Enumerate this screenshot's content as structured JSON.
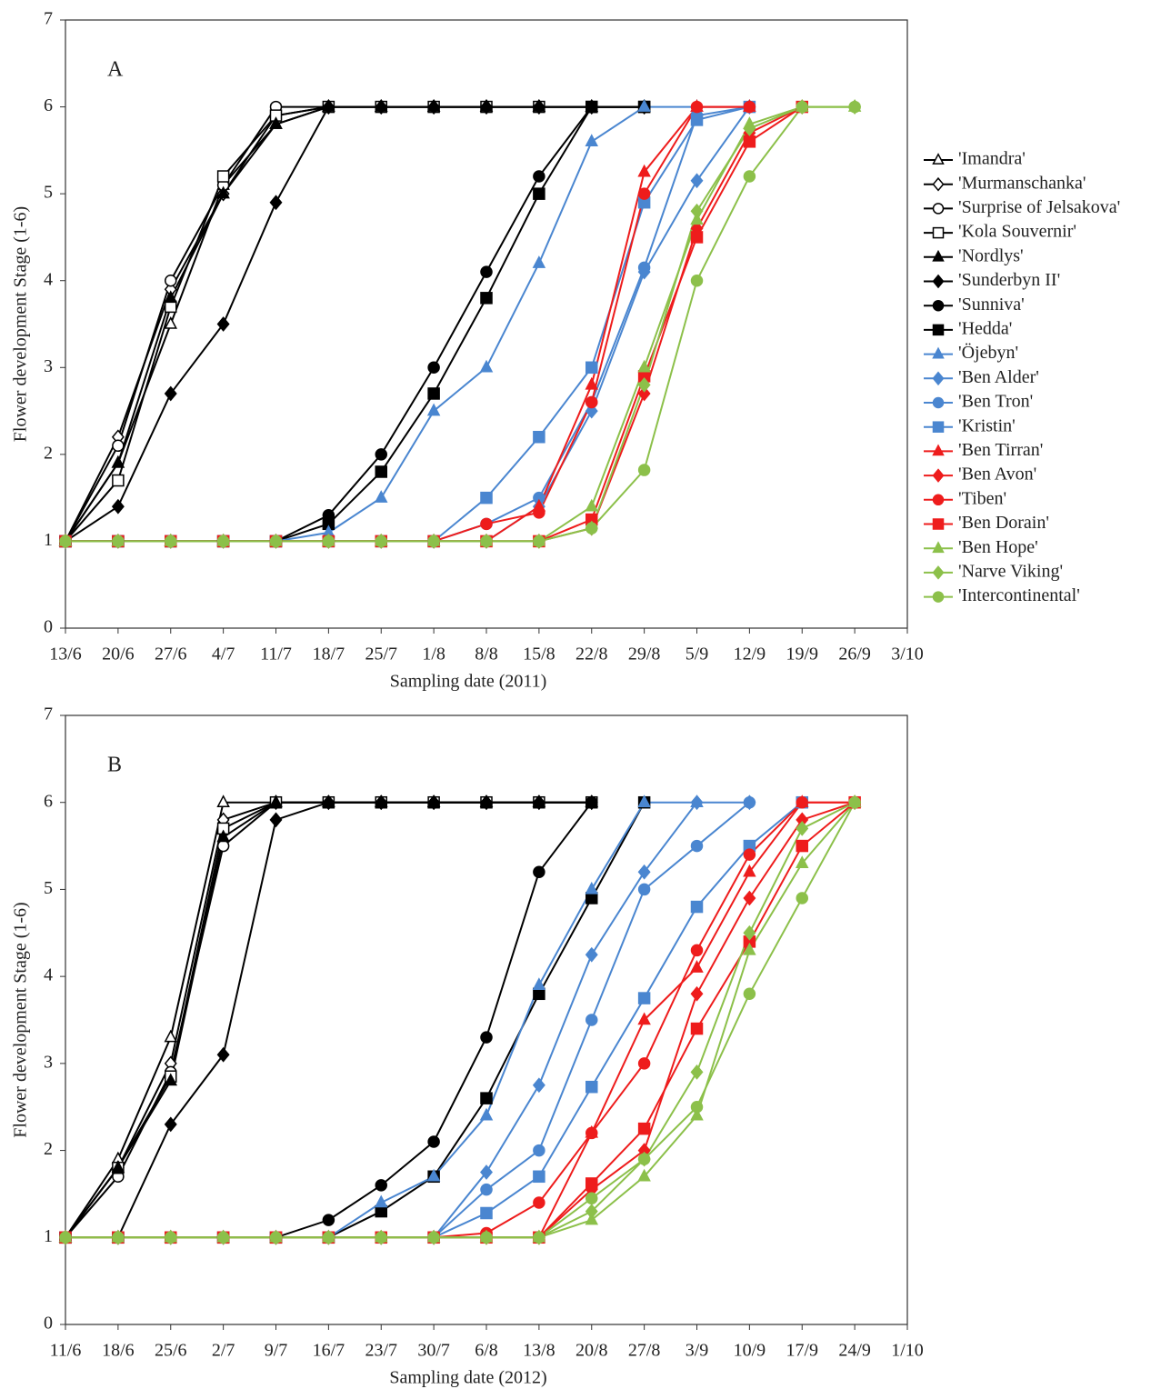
{
  "chart_data": [
    {
      "type": "line",
      "panel_label": "A",
      "x_label": "Sampling date (2011)",
      "y_label": "Flower development Stage (1-6)",
      "categories": [
        "13/6",
        "20/6",
        "27/6",
        "4/7",
        "11/7",
        "18/7",
        "25/7",
        "1/8",
        "8/8",
        "15/8",
        "22/8",
        "29/8",
        "5/9",
        "12/9",
        "19/9",
        "26/9",
        "3/10"
      ],
      "ylim": [
        0,
        7
      ],
      "yticks": [
        0,
        1,
        2,
        3,
        4,
        5,
        6,
        7
      ],
      "series": [
        {
          "name": "'Imandra'",
          "color": "#000000",
          "marker": "triangle-open",
          "values": [
            1,
            1.9,
            3.5,
            5.1,
            5.8,
            6,
            6,
            6,
            6,
            6,
            6,
            6,
            null,
            null,
            null,
            null,
            null
          ]
        },
        {
          "name": "'Murmanschanka'",
          "color": "#000000",
          "marker": "diamond-open",
          "values": [
            1,
            2.2,
            3.9,
            5.0,
            5.9,
            6,
            6,
            6,
            6,
            6,
            6,
            6,
            null,
            null,
            null,
            null,
            null
          ]
        },
        {
          "name": "'Surprise of Jelsakova'",
          "color": "#000000",
          "marker": "circle-open",
          "values": [
            1,
            2.1,
            4.0,
            5.1,
            6.0,
            6,
            6,
            6,
            6,
            6,
            6,
            6,
            null,
            null,
            null,
            null,
            null
          ]
        },
        {
          "name": "'Kola Souvernir'",
          "color": "#000000",
          "marker": "square-open",
          "values": [
            1,
            1.7,
            3.7,
            5.2,
            5.9,
            6,
            6,
            6,
            6,
            6,
            6,
            6,
            null,
            null,
            null,
            null,
            null
          ]
        },
        {
          "name": "'Nordlys'",
          "color": "#000000",
          "marker": "triangle",
          "values": [
            1,
            1.9,
            3.8,
            5.0,
            5.8,
            6,
            6,
            6,
            6,
            6,
            6,
            6,
            null,
            null,
            null,
            null,
            null
          ]
        },
        {
          "name": "'Sunderbyn II'",
          "color": "#000000",
          "marker": "diamond",
          "values": [
            1,
            1.4,
            2.7,
            3.5,
            4.9,
            6,
            6,
            6,
            6,
            6,
            6,
            6,
            null,
            null,
            null,
            null,
            null
          ]
        },
        {
          "name": "'Sunniva'",
          "color": "#000000",
          "marker": "circle",
          "values": [
            1,
            1,
            1,
            1,
            1,
            1.3,
            2.0,
            3.0,
            4.1,
            5.2,
            6,
            6,
            null,
            null,
            null,
            null,
            null
          ]
        },
        {
          "name": "'Hedda'",
          "color": "#000000",
          "marker": "square",
          "values": [
            1,
            1,
            1,
            1,
            1,
            1.2,
            1.8,
            2.7,
            3.8,
            5.0,
            6,
            6,
            null,
            null,
            null,
            null,
            null
          ]
        },
        {
          "name": "'Öjebyn'",
          "color": "#4a86d0",
          "marker": "triangle",
          "values": [
            1,
            1,
            1,
            1,
            1,
            1.1,
            1.5,
            2.5,
            3.0,
            4.2,
            5.6,
            6,
            6,
            6,
            null,
            null,
            null
          ]
        },
        {
          "name": "'Ben Alder'",
          "color": "#4a86d0",
          "marker": "diamond",
          "values": [
            1,
            1,
            1,
            1,
            1,
            1,
            1,
            1,
            1.0,
            1.4,
            2.5,
            4.1,
            5.15,
            6,
            null,
            null,
            null
          ]
        },
        {
          "name": "'Ben Tron'",
          "color": "#4a86d0",
          "marker": "circle",
          "values": [
            1,
            1,
            1,
            1,
            1,
            1,
            1,
            1,
            1.2,
            1.5,
            2.6,
            4.15,
            5.9,
            6,
            null,
            null,
            null
          ]
        },
        {
          "name": "'Kristin'",
          "color": "#4a86d0",
          "marker": "square",
          "values": [
            1,
            1,
            1,
            1,
            1,
            1,
            1,
            1,
            1.5,
            2.2,
            3.0,
            4.9,
            5.85,
            6,
            null,
            null,
            null
          ]
        },
        {
          "name": "'Ben Tirran'",
          "color": "#ee1c1c",
          "marker": "triangle",
          "values": [
            1,
            1,
            1,
            1,
            1,
            1,
            1,
            1,
            1.0,
            1.4,
            2.8,
            5.25,
            6,
            6,
            null,
            null,
            null
          ]
        },
        {
          "name": "'Ben Avon'",
          "color": "#ee1c1c",
          "marker": "diamond",
          "values": [
            1,
            1,
            1,
            1,
            1,
            1,
            1,
            1,
            1,
            1,
            1.15,
            2.7,
            4.6,
            5.7,
            6,
            null,
            null
          ]
        },
        {
          "name": "'Tiben'",
          "color": "#ee1c1c",
          "marker": "circle",
          "values": [
            1,
            1,
            1,
            1,
            1,
            1,
            1,
            1,
            1.2,
            1.33,
            2.6,
            5.0,
            6,
            6,
            null,
            null,
            null
          ]
        },
        {
          "name": "'Ben Dorain'",
          "color": "#ee1c1c",
          "marker": "square",
          "values": [
            1,
            1,
            1,
            1,
            1,
            1,
            1,
            1,
            1,
            1,
            1.25,
            2.9,
            4.5,
            5.6,
            6,
            null,
            null
          ]
        },
        {
          "name": "'Ben Hope'",
          "color": "#8cc04a",
          "marker": "triangle",
          "values": [
            1,
            1,
            1,
            1,
            1,
            1,
            1,
            1,
            1,
            1,
            1.4,
            3.0,
            4.7,
            5.8,
            6,
            6,
            null
          ]
        },
        {
          "name": "'Narve Viking'",
          "color": "#8cc04a",
          "marker": "diamond",
          "values": [
            1,
            1,
            1,
            1,
            1,
            1,
            1,
            1,
            1,
            1,
            1.15,
            2.8,
            4.8,
            5.75,
            6,
            6,
            null
          ]
        },
        {
          "name": "'Intercontinental'",
          "color": "#8cc04a",
          "marker": "circle",
          "values": [
            1,
            1,
            1,
            1,
            1,
            1,
            1,
            1,
            1,
            1,
            1.15,
            1.82,
            4.0,
            5.2,
            6,
            6,
            null
          ]
        }
      ]
    },
    {
      "type": "line",
      "panel_label": "B",
      "x_label": "Sampling date (2012)",
      "y_label": "Flower development Stage (1-6)",
      "categories": [
        "11/6",
        "18/6",
        "25/6",
        "2/7",
        "9/7",
        "16/7",
        "23/7",
        "30/7",
        "6/8",
        "13/8",
        "20/8",
        "27/8",
        "3/9",
        "10/9",
        "17/9",
        "24/9",
        "1/10"
      ],
      "ylim": [
        0,
        7
      ],
      "yticks": [
        0,
        1,
        2,
        3,
        4,
        5,
        6,
        7
      ],
      "series": [
        {
          "color": "#000000",
          "marker": "triangle-open",
          "values": [
            1,
            1.9,
            3.3,
            6.0,
            6,
            6,
            6,
            6,
            6,
            6,
            6,
            null,
            null,
            null,
            null,
            null,
            null
          ]
        },
        {
          "color": "#000000",
          "marker": "diamond-open",
          "values": [
            1,
            1.8,
            3.0,
            5.8,
            6,
            6,
            6,
            6,
            6,
            6,
            6,
            null,
            null,
            null,
            null,
            null,
            null
          ]
        },
        {
          "color": "#000000",
          "marker": "circle-open",
          "values": [
            1,
            1.7,
            2.9,
            5.5,
            6,
            6,
            6,
            6,
            6,
            6,
            6,
            null,
            null,
            null,
            null,
            null,
            null
          ]
        },
        {
          "color": "#000000",
          "marker": "square-open",
          "values": [
            1,
            1.8,
            2.85,
            5.7,
            6,
            6,
            6,
            6,
            6,
            6,
            6,
            null,
            null,
            null,
            null,
            null,
            null
          ]
        },
        {
          "color": "#000000",
          "marker": "triangle",
          "values": [
            1,
            1.8,
            2.8,
            5.6,
            6,
            6,
            6,
            6,
            6,
            6,
            6,
            null,
            null,
            null,
            null,
            null,
            null
          ]
        },
        {
          "color": "#000000",
          "marker": "diamond",
          "values": [
            1,
            1,
            2.3,
            3.1,
            5.8,
            6,
            6,
            6,
            6,
            6,
            6,
            null,
            null,
            null,
            null,
            null,
            null
          ]
        },
        {
          "color": "#000000",
          "marker": "circle",
          "values": [
            1,
            1,
            1,
            1,
            1,
            1.2,
            1.6,
            2.1,
            3.3,
            5.2,
            6,
            null,
            null,
            null,
            null,
            null,
            null
          ]
        },
        {
          "color": "#000000",
          "marker": "square",
          "values": [
            1,
            1,
            1,
            1,
            1,
            1,
            1.3,
            1.7,
            2.6,
            3.8,
            4.9,
            6,
            null,
            null,
            null,
            null,
            null
          ]
        },
        {
          "color": "#4a86d0",
          "marker": "triangle",
          "values": [
            1,
            1,
            1,
            1,
            1,
            1,
            1.4,
            1.7,
            2.4,
            3.9,
            5.0,
            6,
            6,
            null,
            null,
            null,
            null
          ]
        },
        {
          "color": "#4a86d0",
          "marker": "diamond",
          "values": [
            1,
            1,
            1,
            1,
            1,
            1,
            1,
            1,
            1.75,
            2.75,
            4.25,
            5.2,
            6,
            6,
            null,
            null,
            null
          ]
        },
        {
          "color": "#4a86d0",
          "marker": "circle",
          "values": [
            1,
            1,
            1,
            1,
            1,
            1,
            1,
            1,
            1.55,
            2.0,
            3.5,
            5.0,
            5.5,
            6,
            null,
            null,
            null
          ]
        },
        {
          "color": "#4a86d0",
          "marker": "square",
          "values": [
            1,
            1,
            1,
            1,
            1,
            1,
            1,
            1,
            1.28,
            1.7,
            2.73,
            3.75,
            4.8,
            5.5,
            6,
            null,
            null
          ]
        },
        {
          "color": "#ee1c1c",
          "marker": "triangle",
          "values": [
            1,
            1,
            1,
            1,
            1,
            1,
            1,
            1,
            1,
            1,
            2.2,
            3.5,
            4.1,
            5.2,
            6,
            6,
            null
          ]
        },
        {
          "color": "#ee1c1c",
          "marker": "diamond",
          "values": [
            1,
            1,
            1,
            1,
            1,
            1,
            1,
            1,
            1,
            1,
            1.55,
            2.0,
            3.8,
            4.9,
            5.8,
            6,
            null
          ]
        },
        {
          "color": "#ee1c1c",
          "marker": "circle",
          "values": [
            1,
            1,
            1,
            1,
            1,
            1,
            1,
            1,
            1.05,
            1.4,
            2.2,
            3.0,
            4.3,
            5.4,
            6,
            6,
            null
          ]
        },
        {
          "color": "#ee1c1c",
          "marker": "square",
          "values": [
            1,
            1,
            1,
            1,
            1,
            1,
            1,
            1,
            1,
            1,
            1.62,
            2.25,
            3.4,
            4.4,
            5.5,
            6,
            null
          ]
        },
        {
          "color": "#8cc04a",
          "marker": "triangle",
          "values": [
            1,
            1,
            1,
            1,
            1,
            1,
            1,
            1,
            1,
            1,
            1.2,
            1.7,
            2.4,
            4.3,
            5.3,
            6,
            null
          ]
        },
        {
          "color": "#8cc04a",
          "marker": "diamond",
          "values": [
            1,
            1,
            1,
            1,
            1,
            1,
            1,
            1,
            1,
            1,
            1.3,
            1.9,
            2.9,
            4.5,
            5.7,
            6,
            null
          ]
        },
        {
          "color": "#8cc04a",
          "marker": "circle",
          "values": [
            1,
            1,
            1,
            1,
            1,
            1,
            1,
            1,
            1,
            1,
            1.45,
            1.9,
            2.5,
            3.8,
            4.9,
            6,
            null
          ]
        }
      ]
    }
  ]
}
